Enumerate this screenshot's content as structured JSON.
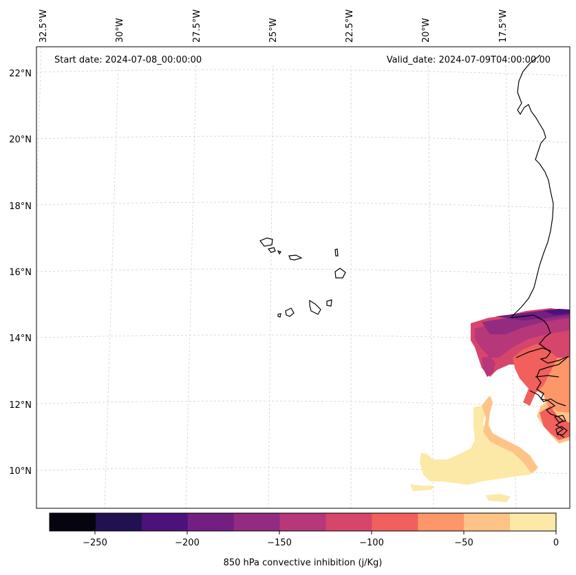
{
  "map": {
    "start_date": "Start date: 2024-07-08_00:00:00",
    "valid_date": "Valid_date: 2024-07-09T04:00:00.00",
    "lon_labels": [
      "32.5°W",
      "30°W",
      "27.5°W",
      "25°W",
      "22.5°W",
      "20°W",
      "17.5°W"
    ],
    "lat_labels": [
      "22°N",
      "20°N",
      "18°N",
      "16°N",
      "14°N",
      "12°N",
      "10°N"
    ]
  },
  "colorbar": {
    "label": "850 hPa convective inhibition (j/Kg)",
    "tick_labels": [
      "−250",
      "−200",
      "−150",
      "−100",
      "−50",
      "0"
    ],
    "colors": [
      "#05040f",
      "#221150",
      "#4d117b",
      "#721f81",
      "#932b80",
      "#b6377a",
      "#d6456c",
      "#f1605d",
      "#fd9668",
      "#fec487",
      "#fce9a8"
    ]
  }
}
